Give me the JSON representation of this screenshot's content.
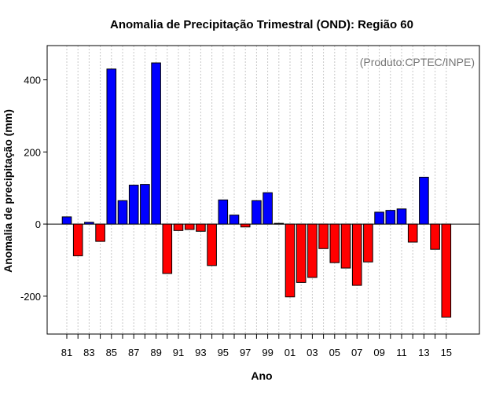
{
  "chart_data": {
    "type": "bar",
    "title": "Anomalia de Precipitação Trimestral (OND): Região 60",
    "xlabel": "Ano",
    "ylabel": "Anomalia de precipitação (mm)",
    "credit": "(Produto:CPTEC/INPE)",
    "ylim": [
      -305,
      495
    ],
    "yticks": [
      -200,
      0,
      200,
      400
    ],
    "categories": [
      "81",
      "82",
      "83",
      "84",
      "85",
      "86",
      "87",
      "88",
      "89",
      "90",
      "91",
      "92",
      "93",
      "94",
      "95",
      "96",
      "97",
      "98",
      "99",
      "00",
      "01",
      "02",
      "03",
      "04",
      "05",
      "06",
      "07",
      "08",
      "09",
      "10",
      "11",
      "12",
      "13",
      "14",
      "15"
    ],
    "xtick_labels": [
      "81",
      "83",
      "85",
      "87",
      "89",
      "91",
      "93",
      "95",
      "97",
      "99",
      "01",
      "03",
      "05",
      "07",
      "09",
      "11",
      "13",
      "15"
    ],
    "values": [
      20,
      -88,
      5,
      -48,
      430,
      65,
      108,
      110,
      447,
      -137,
      -18,
      -15,
      -20,
      -115,
      67,
      25,
      -8,
      65,
      87,
      2,
      -202,
      -162,
      -148,
      -68,
      -107,
      -122,
      -170,
      -105,
      33,
      38,
      42,
      -50,
      130,
      -70,
      -258
    ],
    "colors": {
      "positive": "#0000ff",
      "negative": "#ff0000",
      "grid": "#c8c8c8"
    },
    "grid": true
  }
}
